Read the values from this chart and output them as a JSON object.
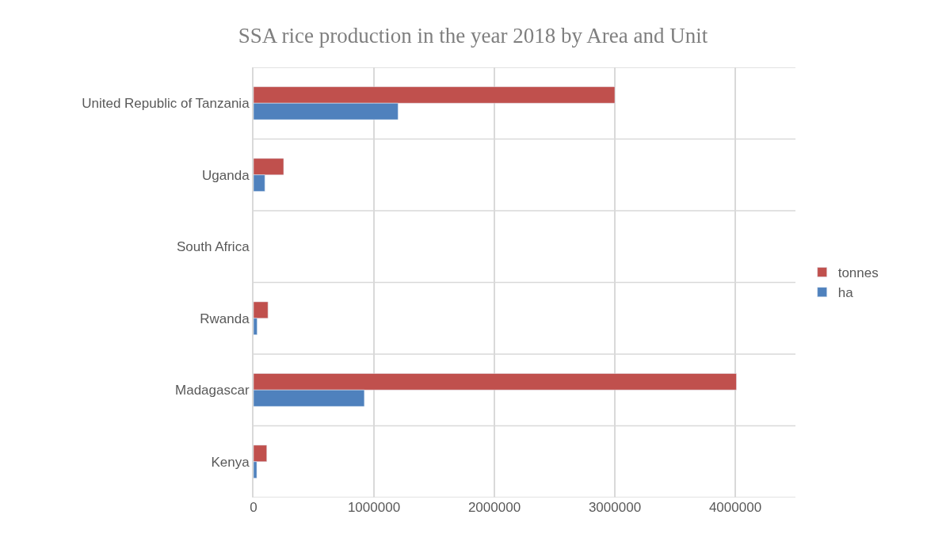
{
  "chart_data": {
    "type": "bar",
    "orientation": "horizontal",
    "title": "SSA rice production in the year 2018 by Area and Unit",
    "categories": [
      "United Republic of Tanzania",
      "Uganda",
      "South Africa",
      "Rwanda",
      "Madagascar",
      "Kenya"
    ],
    "series": [
      {
        "name": "tonnes",
        "color": "#c0504d",
        "values": [
          3000000,
          250000,
          null,
          120000,
          4010000,
          110000
        ]
      },
      {
        "name": "ha",
        "color": "#4f81bd",
        "values": [
          1200000,
          94000,
          null,
          30000,
          920000,
          27000
        ]
      }
    ],
    "xlim": [
      0,
      4500000
    ],
    "xticks": [
      0,
      1000000,
      2000000,
      3000000,
      4000000
    ],
    "grid": true,
    "legend": "right"
  }
}
